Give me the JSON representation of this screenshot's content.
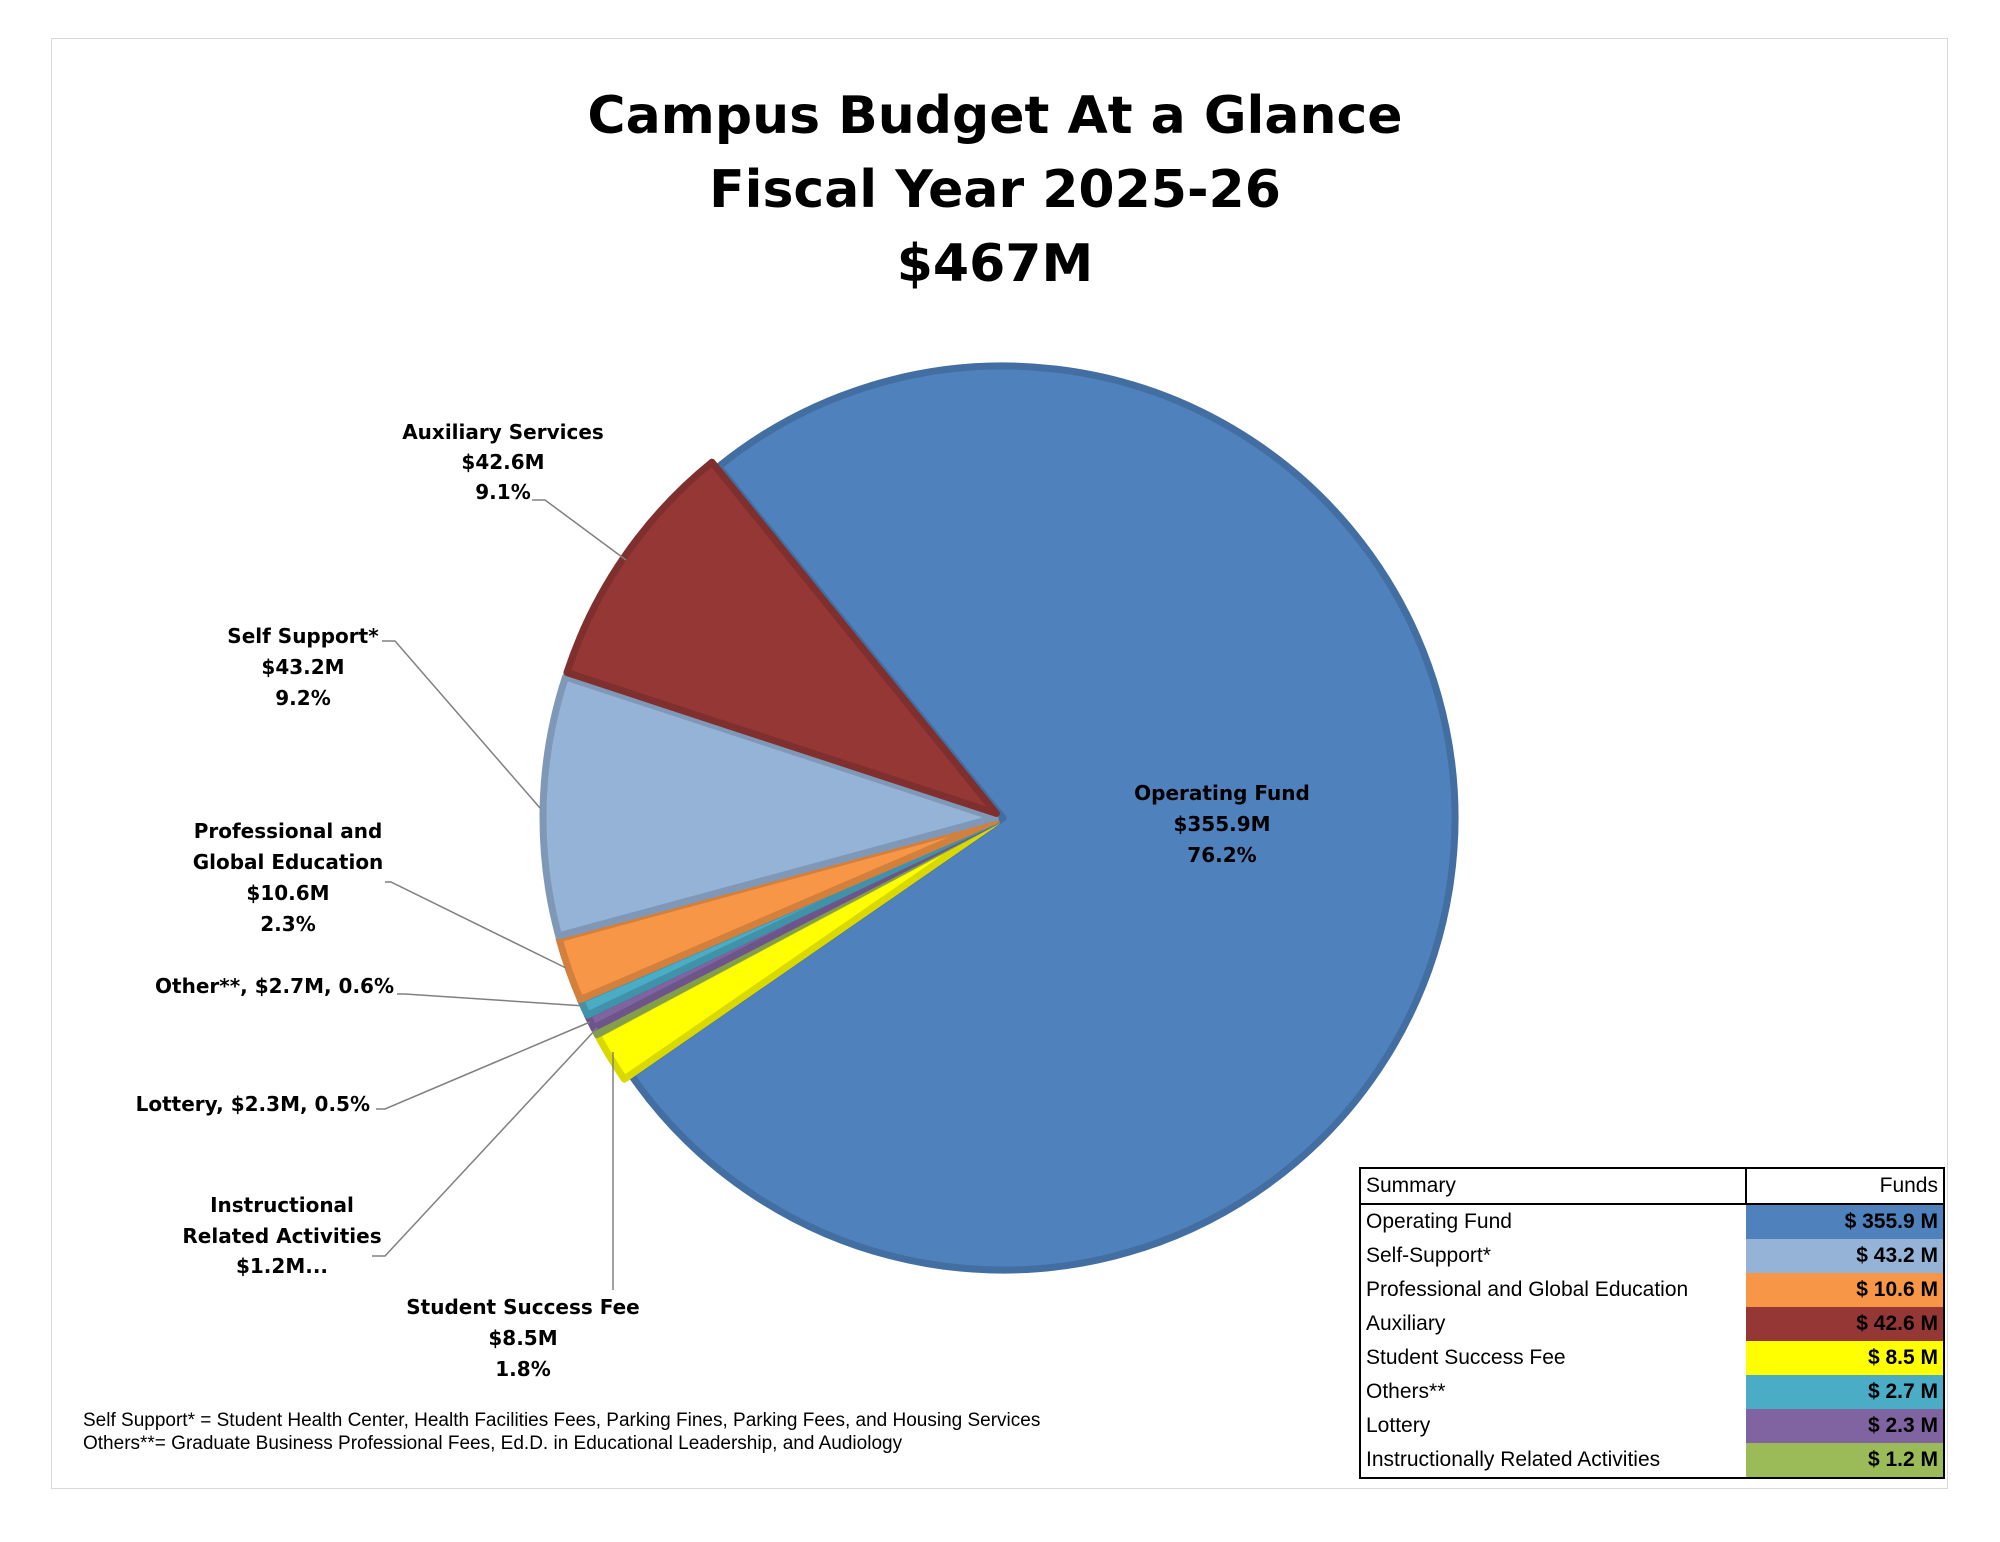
{
  "chart_data": {
    "type": "pie",
    "title": [
      "Campus Budget At a Glance",
      "Fiscal Year 2025-26",
      "$467M"
    ],
    "slices": [
      {
        "name": "Operating Fund",
        "value": 355.9,
        "value_label": "$355.9M",
        "percent": "76.2%",
        "color": "#4F81BD"
      },
      {
        "name": "Student Success Fee",
        "value": 8.5,
        "value_label": "$8.5M",
        "percent": "1.8%",
        "color": "#FFFF00"
      },
      {
        "name": "Instructional Related Activities",
        "value": 1.2,
        "value_label": "$1.2M...",
        "percent": "",
        "color": "#9BBB59"
      },
      {
        "name": "Lottery",
        "value": 2.3,
        "value_label": "$2.3M",
        "percent": "0.5%",
        "color": "#8064A2"
      },
      {
        "name": "Other**",
        "value": 2.7,
        "value_label": "$2.7M",
        "percent": "0.6%",
        "color": "#4BACC6"
      },
      {
        "name": "Professional and Global Education",
        "value": 10.6,
        "value_label": "$10.6M",
        "percent": "2.3%",
        "color": "#F79646"
      },
      {
        "name": "Self Support*",
        "value": 43.2,
        "value_label": "$43.2M",
        "percent": "9.2%",
        "color": "#95B3D7"
      },
      {
        "name": "Auxiliary Services",
        "value": 42.6,
        "value_label": "$42.6M",
        "percent": "9.1%",
        "color": "#953735"
      }
    ],
    "labels": {
      "operating": [
        "Operating Fund",
        "$355.9M",
        "76.2%"
      ],
      "auxiliary": [
        "Auxiliary Services",
        "$42.6M",
        "9.1%"
      ],
      "self_support": [
        "Self Support*",
        "$43.2M",
        "9.2%"
      ],
      "pge": [
        "Professional and",
        "Global Education",
        "$10.6M",
        "2.3%"
      ],
      "other": "Other**, $2.7M, 0.6%",
      "lottery": "Lottery, $2.3M, 0.5%",
      "ira": [
        "Instructional",
        "Related Activities",
        "$1.2M..."
      ],
      "ssf": [
        "Student Success Fee",
        "$8.5M",
        "1.8%"
      ]
    },
    "legend": "none"
  },
  "footnotes": [
    "Self Support* = Student Health Center, Health Facilities Fees, Parking Fines, Parking Fees, and Housing Services",
    "Others**= Graduate Business Professional Fees, Ed.D. in Educational Leadership, and Audiology"
  ],
  "summary_table": {
    "headers": [
      "Summary",
      "Funds"
    ],
    "rows": [
      {
        "label": "Operating Fund",
        "funds": "$ 355.9 M",
        "color": "#4F81BD"
      },
      {
        "label": "Self-Support*",
        "funds": "$ 43.2 M",
        "color": "#95B3D7"
      },
      {
        "label": "Professional and Global Education",
        "funds": "$ 10.6 M",
        "color": "#F79646"
      },
      {
        "label": "Auxiliary",
        "funds": "$ 42.6 M",
        "color": "#953735"
      },
      {
        "label": "Student Success Fee",
        "funds": "$ 8.5 M",
        "color": "#FFFF00"
      },
      {
        "label": "Others**",
        "funds": "$ 2.7 M",
        "color": "#4BACC6"
      },
      {
        "label": "Lottery",
        "funds": "$ 2.3 M",
        "color": "#8064A2"
      },
      {
        "label": "Instructionally Related Activities",
        "funds": "$ 1.2 M",
        "color": "#9BBB59"
      }
    ]
  }
}
